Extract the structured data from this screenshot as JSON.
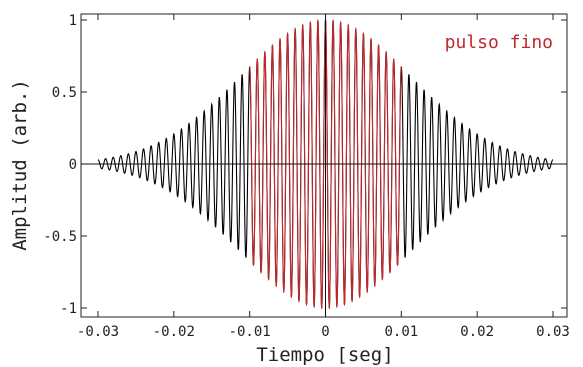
{
  "chart_data": {
    "type": "line",
    "title": "",
    "xlabel": "Tiempo [seg]",
    "ylabel": "Amplitud (arb.)",
    "xlim": [
      -0.034,
      0.03
    ],
    "ylim": [
      -1.05,
      1.05
    ],
    "grid": false,
    "x_ticks": [
      {
        "value": -0.03,
        "label": "-0.03"
      },
      {
        "value": -0.02,
        "label": "-0.02"
      },
      {
        "value": -0.01,
        "label": "-0.01"
      },
      {
        "value": 0,
        "label": "0"
      },
      {
        "value": 0.01,
        "label": "0.01"
      },
      {
        "value": 0.02,
        "label": "0.02"
      },
      {
        "value": 0.03,
        "label": "0.03"
      }
    ],
    "y_ticks": [
      {
        "value": 1,
        "label": "1"
      },
      {
        "value": 0.5,
        "label": "0.5"
      },
      {
        "value": 0,
        "label": "0"
      },
      {
        "value": -0.5,
        "label": "-0.5"
      },
      {
        "value": -1,
        "label": "-1"
      }
    ],
    "series": [
      {
        "name": "",
        "color": "#000000",
        "frequency_hz": 1000,
        "envelope": "gaussian",
        "envelope_sigma_s": 0.0113,
        "peak_amplitude": 1.0,
        "x_range": [
          -0.03,
          0.03
        ]
      },
      {
        "name": "",
        "color": "#c0282d",
        "frequency_hz": 1000,
        "envelope": "gaussian",
        "envelope_sigma_s": 0.0113,
        "peak_amplitude": 1.0,
        "x_range": [
          -0.01,
          0.01
        ]
      }
    ],
    "annotations": [
      {
        "text": "pulso fino",
        "color": "#c0282d",
        "position": "top-right"
      }
    ]
  }
}
